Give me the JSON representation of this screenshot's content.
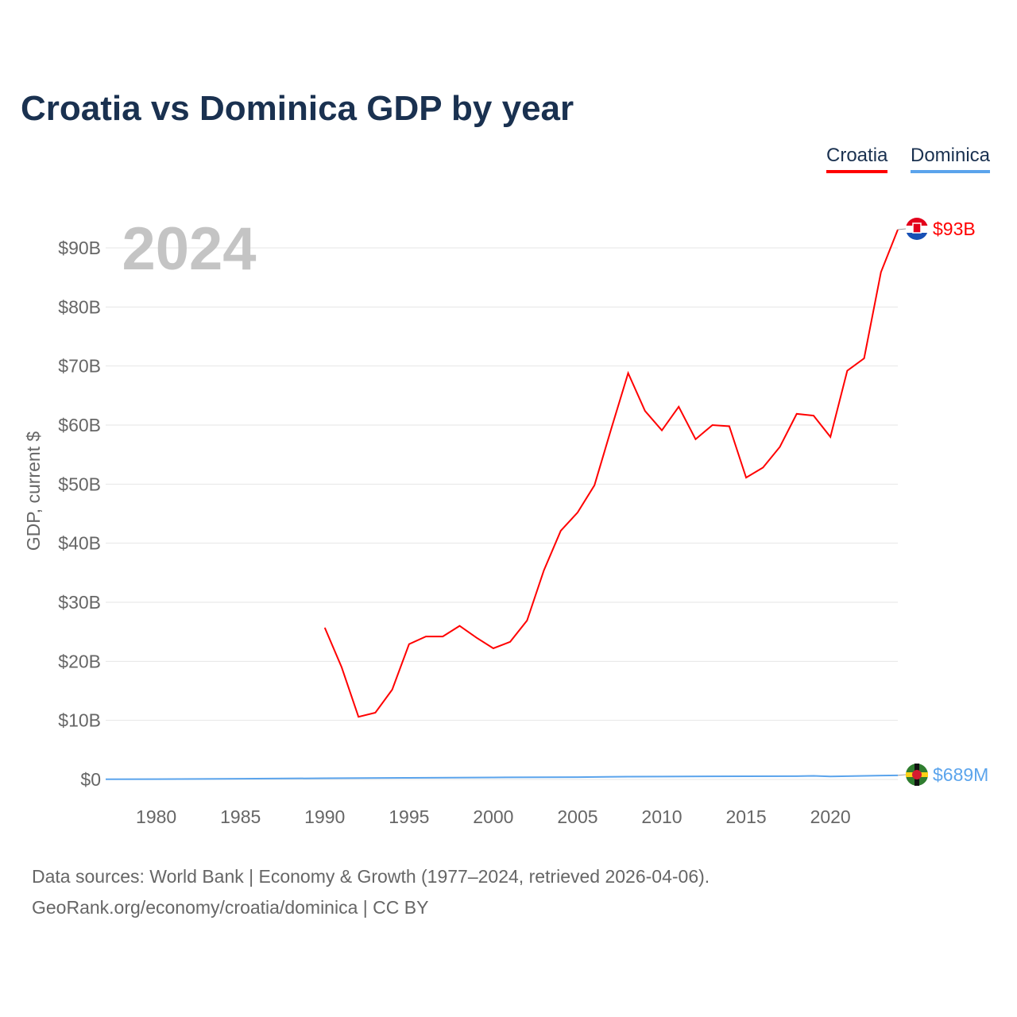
{
  "title": "Croatia vs Dominica GDP by year",
  "legend": [
    {
      "label": "Croatia",
      "color": "#ff0000"
    },
    {
      "label": "Dominica",
      "color": "#5ba4ec"
    }
  ],
  "year_label": "2024",
  "footer": {
    "line1": "Data sources: World Bank | Economy & Growth (1977–2024, retrieved 2026-04-06).",
    "line2": "GeoRank.org/economy/croatia/dominica | CC BY"
  },
  "chart_data": {
    "type": "line",
    "title": "Croatia vs Dominica GDP by year",
    "xlabel": "",
    "ylabel": "GDP, current $",
    "xlim": [
      1977,
      2024
    ],
    "ylim": [
      0,
      90
    ],
    "y_unit": "billion USD",
    "x_ticks": [
      1980,
      1985,
      1990,
      1995,
      2000,
      2005,
      2010,
      2015,
      2020
    ],
    "y_ticks": [
      0,
      10,
      20,
      30,
      40,
      50,
      60,
      70,
      80,
      90
    ],
    "y_tick_labels": [
      "$0",
      "$10B",
      "$20B",
      "$30B",
      "$40B",
      "$50B",
      "$60B",
      "$70B",
      "$80B",
      "$90B"
    ],
    "grid": true,
    "legend_position": "top-right",
    "series": [
      {
        "name": "Croatia",
        "color": "#ff0000",
        "end_label": "$93B",
        "x": [
          1990,
          1991,
          1992,
          1993,
          1994,
          1995,
          1996,
          1997,
          1998,
          1999,
          2000,
          2001,
          2002,
          2003,
          2004,
          2005,
          2006,
          2007,
          2008,
          2009,
          2010,
          2011,
          2012,
          2013,
          2014,
          2015,
          2016,
          2017,
          2018,
          2019,
          2020,
          2021,
          2022,
          2023,
          2024
        ],
        "values": [
          25.7,
          19.0,
          10.6,
          11.3,
          15.2,
          22.9,
          24.2,
          24.2,
          26.0,
          24.0,
          22.2,
          23.3,
          26.9,
          35.4,
          42.1,
          45.2,
          49.8,
          59.4,
          68.8,
          62.4,
          59.1,
          63.1,
          57.6,
          60.0,
          59.8,
          51.1,
          52.8,
          56.3,
          61.9,
          61.6,
          58.0,
          69.2,
          71.3,
          85.9,
          93.1
        ]
      },
      {
        "name": "Dominica",
        "color": "#5ba4ec",
        "end_label": "$689M",
        "x": [
          1977,
          1980,
          1985,
          1990,
          1995,
          2000,
          2005,
          2008,
          2010,
          2015,
          2018,
          2019,
          2020,
          2021,
          2022,
          2023,
          2024
        ],
        "values": [
          0.04,
          0.05,
          0.11,
          0.2,
          0.27,
          0.34,
          0.38,
          0.47,
          0.49,
          0.54,
          0.55,
          0.61,
          0.5,
          0.55,
          0.61,
          0.65,
          0.689
        ]
      }
    ]
  }
}
